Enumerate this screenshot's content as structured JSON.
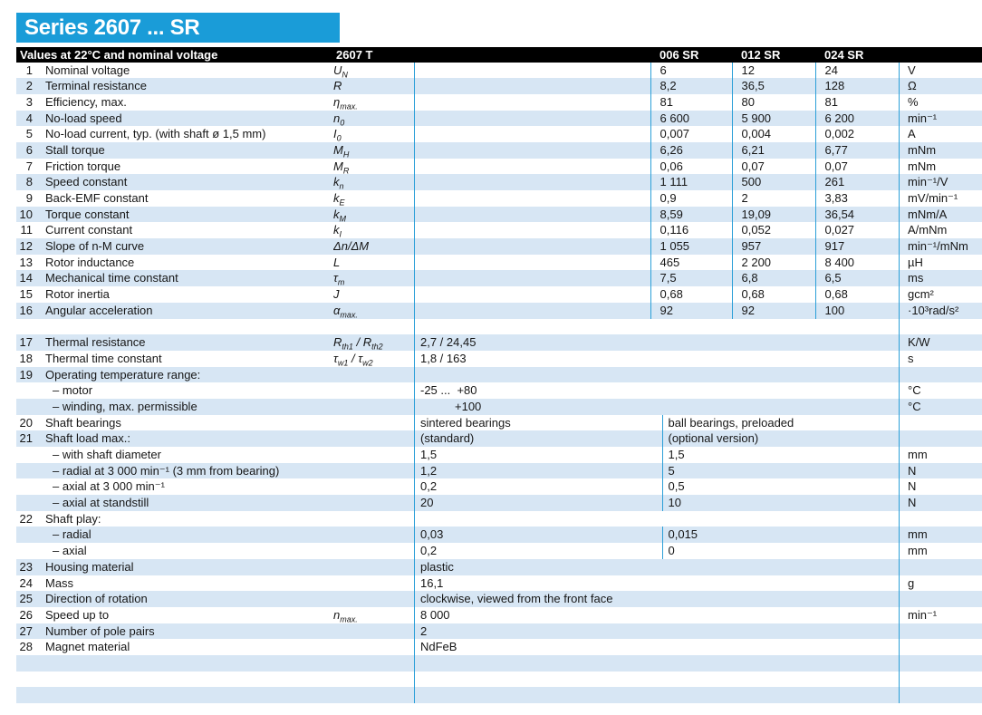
{
  "title": "Series 2607 ... SR",
  "colors": {
    "accent": "#1A9CD8",
    "stripe": "#D7E6F4",
    "divider_line": "#2B9FD8",
    "header_bg": "#000000"
  },
  "header": {
    "left": "Values at 22°C and nominal voltage",
    "type": "2607 T",
    "variants": [
      "006 SR",
      "012 SR",
      "024 SR"
    ]
  },
  "rows": [
    {
      "n": "1",
      "label": "Nominal voltage",
      "sym": "U~N~",
      "layout": "g3",
      "v": [
        "6",
        "12",
        "24"
      ],
      "unit": "V"
    },
    {
      "n": "2",
      "label": "Terminal resistance",
      "sym": "R",
      "layout": "g3",
      "v": [
        "8,2",
        "36,5",
        "128"
      ],
      "unit": "Ω"
    },
    {
      "n": "3",
      "label": "Efficiency, max.",
      "sym": "η~max.~",
      "layout": "g3",
      "v": [
        "81",
        "80",
        "81"
      ],
      "unit": "%"
    },
    {
      "n": "4",
      "label": "No-load speed",
      "sym": "n~0~",
      "layout": "g3",
      "v": [
        "6 600",
        "5 900",
        "6 200"
      ],
      "unit": "min⁻¹"
    },
    {
      "n": "5",
      "label": "No-load current, typ. (with shaft ø 1,5 mm)",
      "sym": "I~0~",
      "layout": "g3",
      "v": [
        "0,007",
        "0,004",
        "0,002"
      ],
      "unit": "A"
    },
    {
      "n": "6",
      "label": "Stall torque",
      "sym": "M~H~",
      "layout": "g3",
      "v": [
        "6,26",
        "6,21",
        "6,77"
      ],
      "unit": "mNm"
    },
    {
      "n": "7",
      "label": "Friction torque",
      "sym": "M~R~",
      "layout": "g3",
      "v": [
        "0,06",
        "0,07",
        "0,07"
      ],
      "unit": "mNm"
    },
    {
      "n": "8",
      "label": "Speed constant",
      "sym": "k~n~",
      "layout": "g3",
      "v": [
        "1 111",
        "500",
        "261"
      ],
      "unit": "min⁻¹/V"
    },
    {
      "n": "9",
      "label": "Back-EMF constant",
      "sym": "k~E~",
      "layout": "g3",
      "v": [
        "0,9",
        "2",
        "3,83"
      ],
      "unit": "mV/min⁻¹"
    },
    {
      "n": "10",
      "label": "Torque constant",
      "sym": "k~M~",
      "layout": "g3",
      "v": [
        "8,59",
        "19,09",
        "36,54"
      ],
      "unit": "mNm/A"
    },
    {
      "n": "11",
      "label": "Current constant",
      "sym": "k~I~",
      "layout": "g3",
      "v": [
        "0,116",
        "0,052",
        "0,027"
      ],
      "unit": "A/mNm"
    },
    {
      "n": "12",
      "label": "Slope of n-M curve",
      "sym": "Δn/ΔM",
      "layout": "g3",
      "v": [
        "1 055",
        "957",
        "917"
      ],
      "unit": "min⁻¹/mNm"
    },
    {
      "n": "13",
      "label": "Rotor inductance",
      "sym": "L",
      "layout": "g3",
      "v": [
        "465",
        "2 200",
        "8 400"
      ],
      "unit": "µH"
    },
    {
      "n": "14",
      "label": "Mechanical time constant",
      "sym": "τ~m~",
      "layout": "g3",
      "v": [
        "7,5",
        "6,8",
        "6,5"
      ],
      "unit": "ms"
    },
    {
      "n": "15",
      "label": "Rotor inertia",
      "sym": "J",
      "layout": "g3",
      "v": [
        "0,68",
        "0,68",
        "0,68"
      ],
      "unit": "gcm²"
    },
    {
      "n": "16",
      "label": "Angular acceleration",
      "sym": "α~max.~",
      "layout": "g3",
      "v": [
        "92",
        "92",
        "100"
      ],
      "unit": "·10³rad/s²"
    },
    {
      "n": "",
      "label": "",
      "sym": "",
      "layout": "w",
      "v": "",
      "unit": ""
    },
    {
      "n": "17",
      "label": "Thermal resistance",
      "sym": "R~th1~ / R~th2~",
      "layout": "w",
      "v": "2,7 / 24,45",
      "unit": "K/W"
    },
    {
      "n": "18",
      "label": "Thermal time constant",
      "sym": "τ~w1~ / τ~w2~",
      "layout": "w",
      "v": "1,8 / 163",
      "unit": "s"
    },
    {
      "n": "19",
      "label": "Operating temperature range:",
      "sym": "",
      "layout": "w",
      "v": "",
      "unit": ""
    },
    {
      "n": "",
      "label": "– motor",
      "indent": true,
      "sym": "",
      "layout": "w",
      "v": "-25 ...  +80",
      "unit": "°C"
    },
    {
      "n": "",
      "label": "– winding, max. permissible",
      "indent": true,
      "sym": "",
      "layout": "w",
      "v": "+100",
      "vindent": true,
      "unit": "°C"
    },
    {
      "n": "20",
      "label": "Shaft bearings",
      "sym": "",
      "layout": "s2",
      "v": [
        "sintered bearings",
        "ball bearings, preloaded"
      ],
      "unit": ""
    },
    {
      "n": "21",
      "label": "Shaft load max.:",
      "sym": "",
      "layout": "s2",
      "v": [
        "(standard)",
        "(optional version)"
      ],
      "unit": ""
    },
    {
      "n": "",
      "label": "– with shaft diameter",
      "indent": true,
      "sym": "",
      "layout": "s2",
      "v": [
        "1,5",
        "1,5"
      ],
      "unit": "mm"
    },
    {
      "n": "",
      "label": "– radial at 3 000 min⁻¹ (3 mm from bearing)",
      "indent": true,
      "sym": "",
      "layout": "s2",
      "v": [
        "1,2",
        "5"
      ],
      "unit": "N"
    },
    {
      "n": "",
      "label": "– axial at 3 000 min⁻¹",
      "indent": true,
      "sym": "",
      "layout": "s2",
      "v": [
        "0,2",
        "0,5"
      ],
      "unit": "N"
    },
    {
      "n": "",
      "label": "– axial at standstill",
      "indent": true,
      "sym": "",
      "layout": "s2",
      "v": [
        "20",
        "10"
      ],
      "unit": "N"
    },
    {
      "n": "22",
      "label": "Shaft play:",
      "sym": "",
      "layout": "w",
      "v": "",
      "unit": ""
    },
    {
      "n": "",
      "label": "– radial",
      "indent": true,
      "sym": "≤",
      "layout": "s2",
      "v": [
        "0,03",
        "0,015"
      ],
      "unit": "mm"
    },
    {
      "n": "",
      "label": "– axial",
      "indent": true,
      "sym": "≤",
      "layout": "s2",
      "v": [
        "0,2",
        "0"
      ],
      "unit": "mm"
    },
    {
      "n": "23",
      "label": "Housing material",
      "sym": "",
      "layout": "w",
      "v": "plastic",
      "unit": ""
    },
    {
      "n": "24",
      "label": "Mass",
      "sym": "",
      "layout": "w",
      "v": "16,1",
      "unit": "g"
    },
    {
      "n": "25",
      "label": "Direction of rotation",
      "sym": "",
      "layout": "w",
      "v": "clockwise, viewed from the front face",
      "unit": ""
    },
    {
      "n": "26",
      "label": "Speed up to",
      "sym": "n~max.~",
      "layout": "w",
      "v": "8 000",
      "unit": "min⁻¹"
    },
    {
      "n": "27",
      "label": "Number of pole pairs",
      "sym": "",
      "layout": "w",
      "v": "2",
      "unit": ""
    },
    {
      "n": "28",
      "label": "Magnet material",
      "sym": "",
      "layout": "w",
      "v": "NdFeB",
      "unit": ""
    },
    {
      "n": "",
      "label": "",
      "sym": "",
      "layout": "w",
      "v": "",
      "unit": ""
    },
    {
      "n": "",
      "label": "",
      "sym": "",
      "layout": "w",
      "v": "",
      "unit": ""
    },
    {
      "n": "",
      "label": "",
      "sym": "",
      "layout": "w",
      "v": "",
      "unit": ""
    }
  ]
}
